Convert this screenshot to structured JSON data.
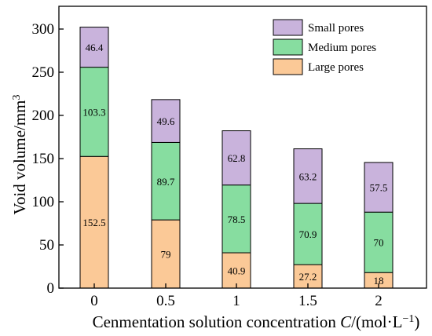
{
  "chart_data": {
    "type": "bar",
    "stacked": true,
    "categories": [
      "0",
      "0.5",
      "1",
      "1.5",
      "2"
    ],
    "series": [
      {
        "name": "Large pores",
        "values": [
          152.5,
          79,
          40.9,
          27.2,
          18
        ],
        "color": "#fbc997"
      },
      {
        "name": "Medium pores",
        "values": [
          103.3,
          89.7,
          78.5,
          70.9,
          70
        ],
        "color": "#87dda0"
      },
      {
        "name": "Small pores",
        "values": [
          46.4,
          49.6,
          62.8,
          63.2,
          57.5
        ],
        "color": "#c9b3dc"
      }
    ],
    "data_labels": [
      [
        "152.5",
        "79",
        "40.9",
        "27.2",
        "18"
      ],
      [
        "103.3",
        "89.7",
        "78.5",
        "70.9",
        "70"
      ],
      [
        "46.4",
        "49.6",
        "62.8",
        "63.2",
        "57.5"
      ]
    ],
    "ylabel_main": "Void volume/mm",
    "ylabel_sup": "3",
    "xlabel_parts": [
      "Cenmentation solution concentration ",
      "C",
      "/(mol·L",
      "−1",
      ")"
    ],
    "ylim": [
      0,
      320
    ],
    "yticks": [
      0,
      50,
      100,
      150,
      200,
      250,
      300
    ],
    "legend_position": "top-right",
    "legend_order": [
      "Small pores",
      "Medium pores",
      "Large pores"
    ],
    "grid": false
  }
}
